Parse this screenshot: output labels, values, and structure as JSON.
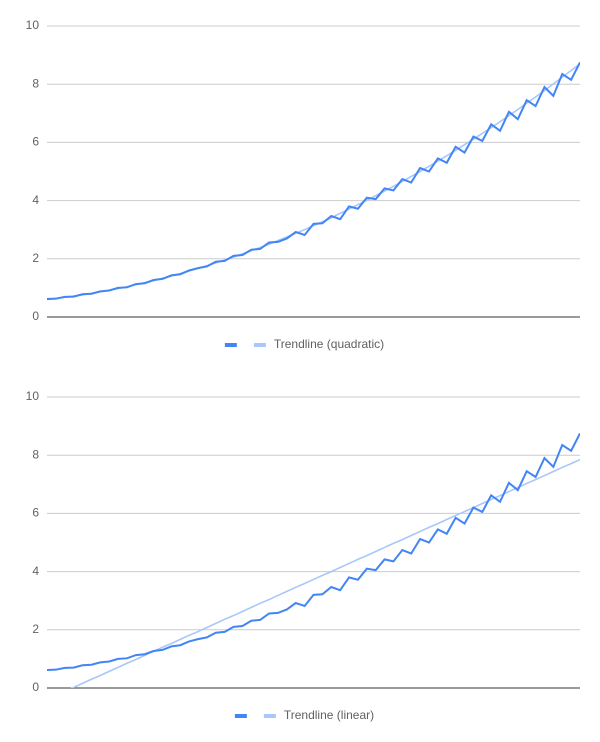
{
  "chart_data": [
    {
      "type": "line",
      "ylim": [
        0,
        10
      ],
      "yticks": [
        0,
        2,
        4,
        6,
        8,
        10
      ],
      "grid": true,
      "series": [
        {
          "color": "#4285f4",
          "values": [
            0.62,
            0.63,
            0.69,
            0.7,
            0.78,
            0.8,
            0.88,
            0.91,
            1.0,
            1.02,
            1.13,
            1.16,
            1.27,
            1.31,
            1.43,
            1.47,
            1.6,
            1.68,
            1.74,
            1.9,
            1.93,
            2.1,
            2.13,
            2.31,
            2.34,
            2.56,
            2.58,
            2.7,
            2.92,
            2.82,
            3.2,
            3.22,
            3.47,
            3.36,
            3.8,
            3.72,
            4.1,
            4.05,
            4.42,
            4.35,
            4.74,
            4.62,
            5.12,
            5.0,
            5.45,
            5.3,
            5.85,
            5.65,
            6.2,
            6.05,
            6.62,
            6.4,
            7.05,
            6.8,
            7.45,
            7.25,
            7.9,
            7.6,
            8.35,
            8.15,
            8.75
          ]
        },
        {
          "name": "Trendline (quadratic)",
          "color": "#a8c7fa",
          "values": [
            0.6,
            0.64,
            0.68,
            0.72,
            0.76,
            0.81,
            0.87,
            0.92,
            0.98,
            1.04,
            1.11,
            1.18,
            1.25,
            1.33,
            1.41,
            1.49,
            1.58,
            1.67,
            1.76,
            1.86,
            1.96,
            2.06,
            2.17,
            2.28,
            2.39,
            2.5,
            2.63,
            2.75,
            2.88,
            3.0,
            3.14,
            3.27,
            3.41,
            3.56,
            3.71,
            3.86,
            4.01,
            4.17,
            4.33,
            4.49,
            4.66,
            4.83,
            5.0,
            5.18,
            5.36,
            5.54,
            5.73,
            5.92,
            6.11,
            6.31,
            6.51,
            6.71,
            6.92,
            7.13,
            7.35,
            7.56,
            7.78,
            8.01,
            8.24,
            8.47,
            8.7
          ]
        }
      ]
    },
    {
      "type": "line",
      "ylim": [
        0,
        10
      ],
      "yticks": [
        0,
        2,
        4,
        6,
        8,
        10
      ],
      "grid": true,
      "series": [
        {
          "color": "#4285f4",
          "values": [
            0.62,
            0.63,
            0.69,
            0.7,
            0.78,
            0.8,
            0.88,
            0.91,
            1.0,
            1.02,
            1.13,
            1.16,
            1.27,
            1.31,
            1.43,
            1.47,
            1.6,
            1.68,
            1.74,
            1.9,
            1.93,
            2.1,
            2.13,
            2.31,
            2.34,
            2.56,
            2.58,
            2.7,
            2.92,
            2.82,
            3.2,
            3.22,
            3.47,
            3.36,
            3.8,
            3.72,
            4.1,
            4.05,
            4.42,
            4.35,
            4.74,
            4.62,
            5.12,
            5.0,
            5.45,
            5.3,
            5.85,
            5.65,
            6.2,
            6.05,
            6.62,
            6.4,
            7.05,
            6.8,
            7.45,
            7.25,
            7.9,
            7.6,
            8.35,
            8.15,
            8.75
          ]
        },
        {
          "name": "Trendline (linear)",
          "color": "#a8c7fa",
          "values": [
            -0.39,
            -0.25,
            -0.12,
            0.02,
            0.16,
            0.3,
            0.43,
            0.57,
            0.71,
            0.85,
            0.98,
            1.12,
            1.26,
            1.4,
            1.53,
            1.67,
            1.81,
            1.94,
            2.08,
            2.22,
            2.36,
            2.49,
            2.63,
            2.77,
            2.91,
            3.04,
            3.18,
            3.32,
            3.46,
            3.59,
            3.73,
            3.87,
            4.0,
            4.14,
            4.28,
            4.42,
            4.55,
            4.69,
            4.83,
            4.97,
            5.1,
            5.24,
            5.38,
            5.52,
            5.65,
            5.79,
            5.93,
            6.06,
            6.2,
            6.34,
            6.48,
            6.61,
            6.75,
            6.89,
            7.03,
            7.16,
            7.3,
            7.44,
            7.58,
            7.71,
            7.85
          ]
        }
      ]
    }
  ]
}
